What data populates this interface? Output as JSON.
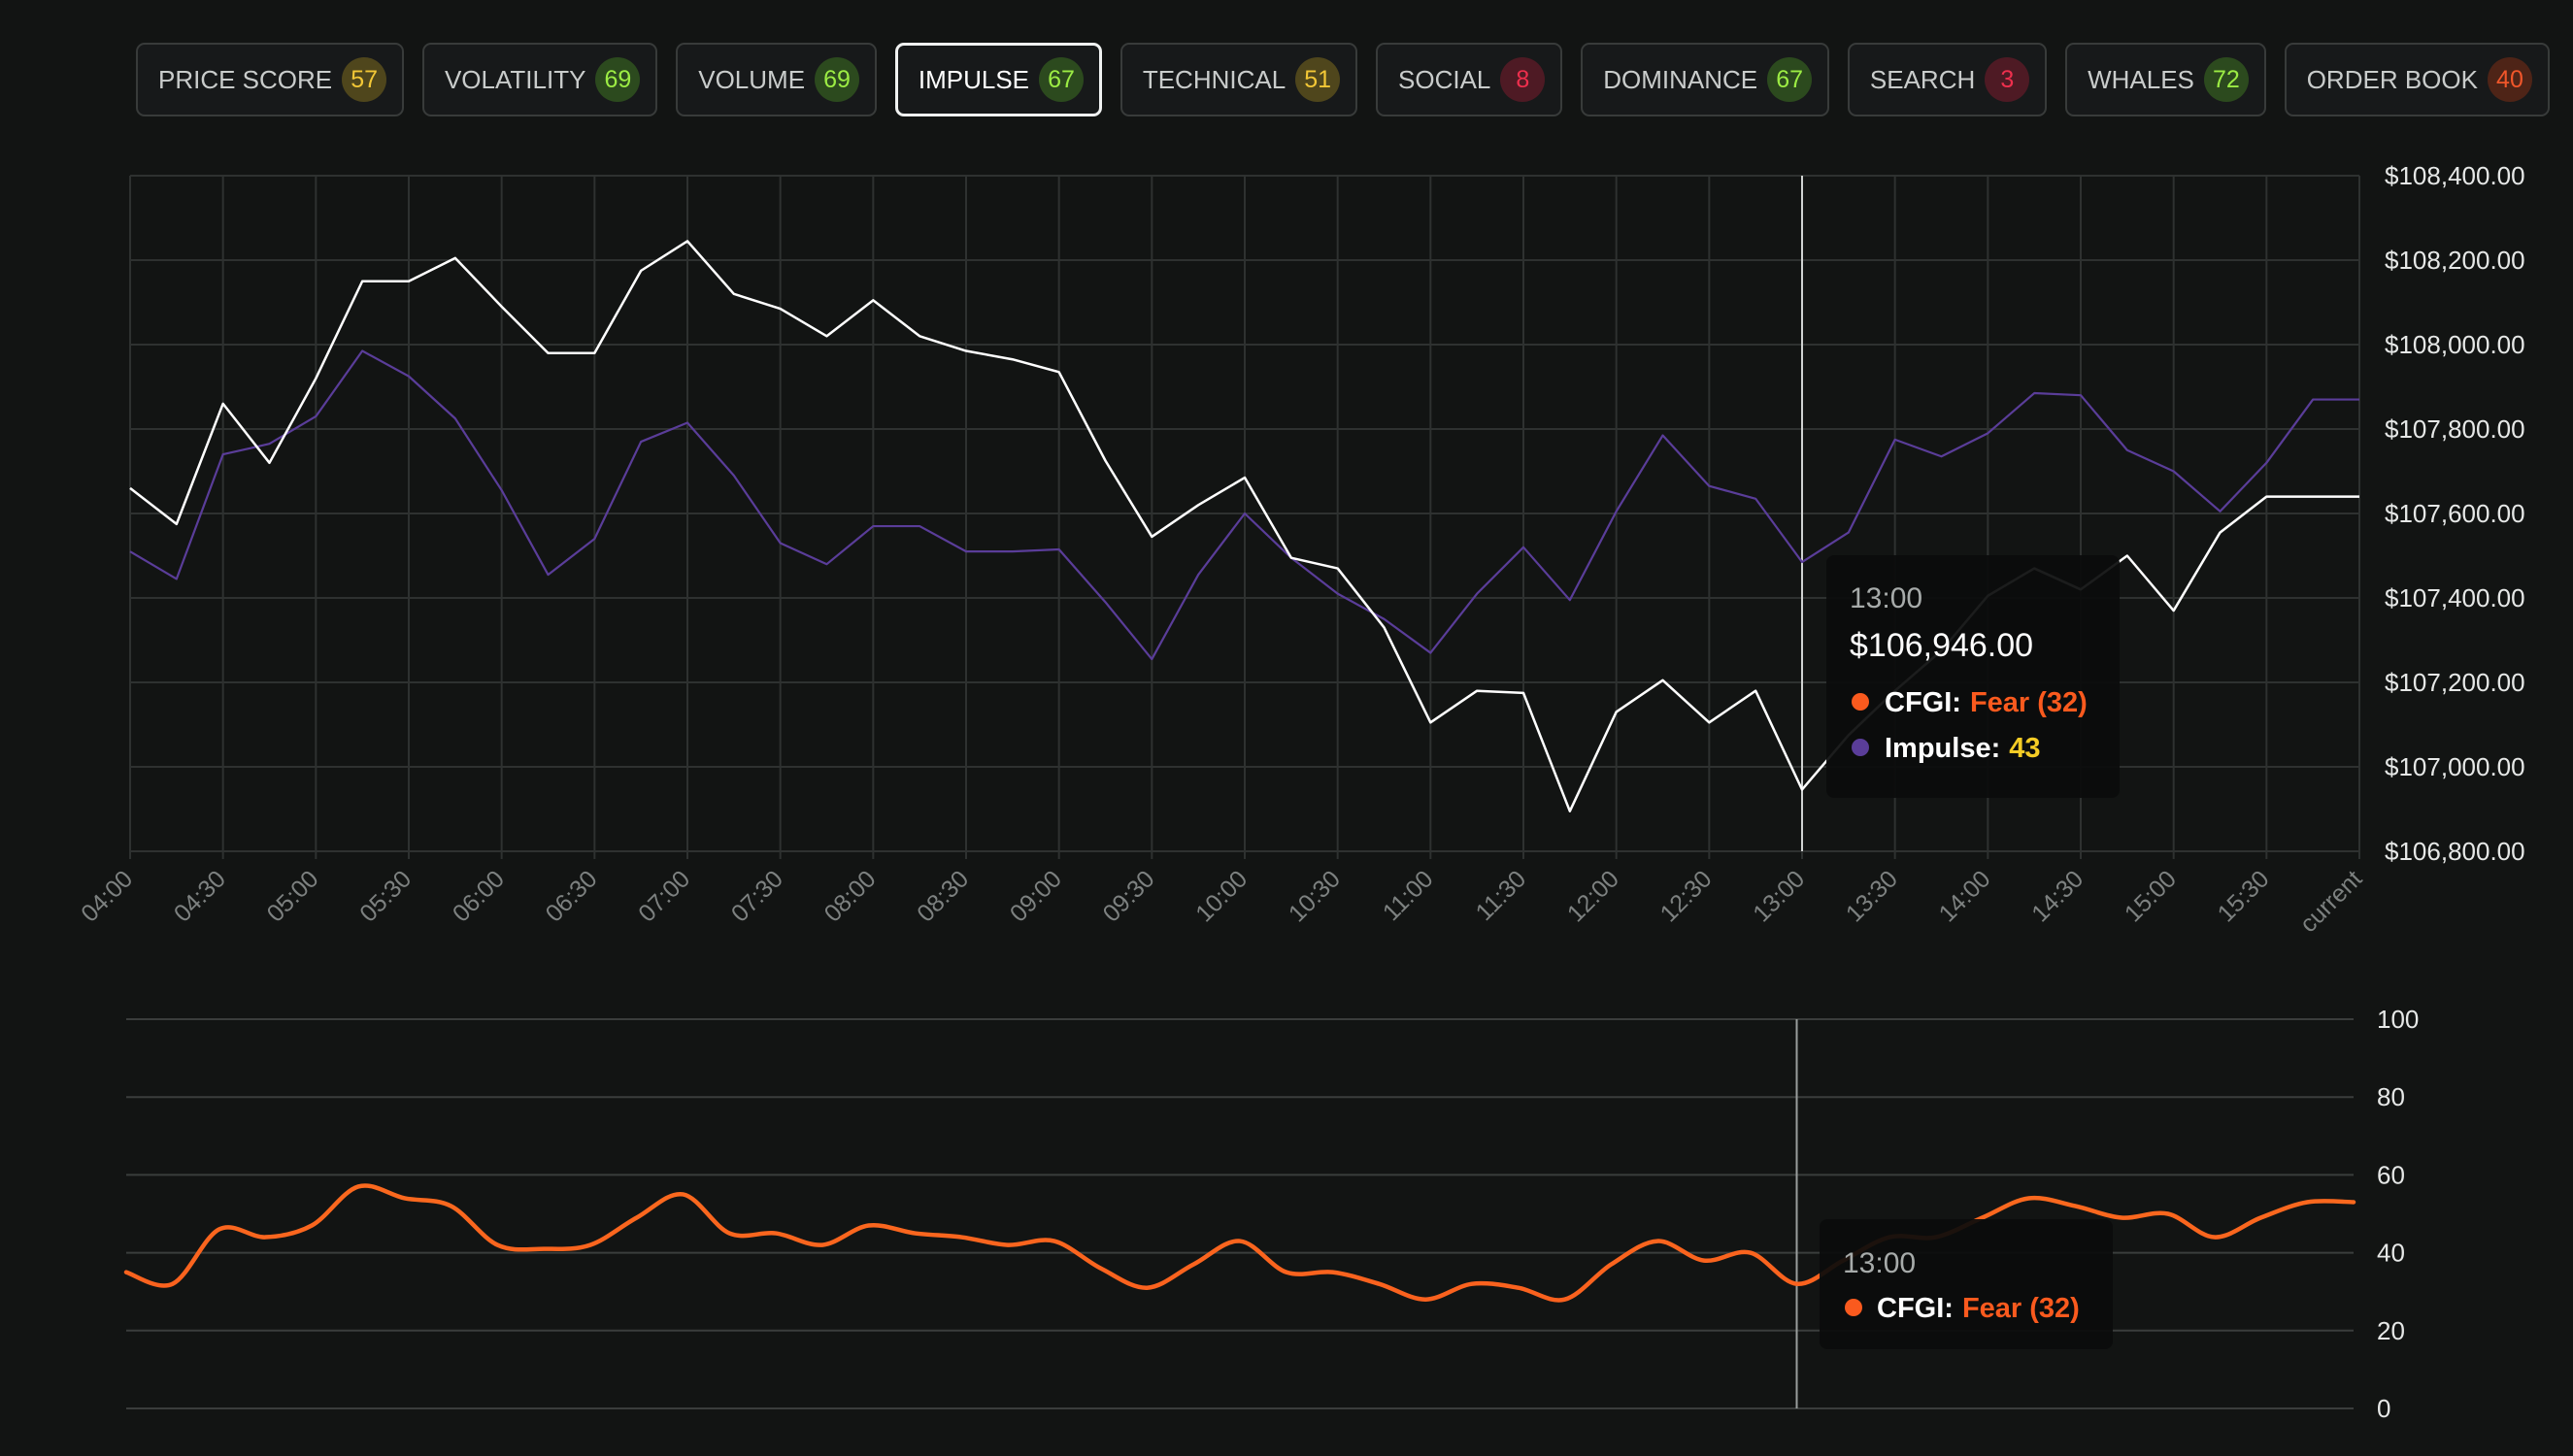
{
  "tabs": [
    {
      "label": "PRICE SCORE",
      "score": "57",
      "badge_bg": "#4f461c",
      "badge_fg": "#f2c736",
      "active": false
    },
    {
      "label": "VOLATILITY",
      "score": "69",
      "badge_bg": "#2c4a1e",
      "badge_fg": "#9cec44",
      "active": false
    },
    {
      "label": "VOLUME",
      "score": "69",
      "badge_bg": "#2c4a1e",
      "badge_fg": "#9cec44",
      "active": false
    },
    {
      "label": "IMPULSE",
      "score": "67",
      "badge_bg": "#2c4a1e",
      "badge_fg": "#9cec44",
      "active": true
    },
    {
      "label": "TECHNICAL",
      "score": "51",
      "badge_bg": "#4f461c",
      "badge_fg": "#f2c736",
      "active": false
    },
    {
      "label": "SOCIAL",
      "score": "8",
      "badge_bg": "#4e1a24",
      "badge_fg": "#ee2f4d",
      "active": false
    },
    {
      "label": "DOMINANCE",
      "score": "67",
      "badge_bg": "#2c4a1e",
      "badge_fg": "#9cec44",
      "active": false
    },
    {
      "label": "SEARCH",
      "score": "3",
      "badge_bg": "#4e1a24",
      "badge_fg": "#ee2f4d",
      "active": false
    },
    {
      "label": "WHALES",
      "score": "72",
      "badge_bg": "#2c4a1e",
      "badge_fg": "#9cec44",
      "active": false
    },
    {
      "label": "ORDER BOOK",
      "score": "40",
      "badge_bg": "#4e2417",
      "badge_fg": "#f0562a",
      "active": false
    }
  ],
  "chart_data": [
    {
      "type": "line",
      "x": [
        "04:00",
        "04:15",
        "04:30",
        "04:45",
        "05:00",
        "05:15",
        "05:30",
        "05:45",
        "06:00",
        "06:15",
        "06:30",
        "06:45",
        "07:00",
        "07:15",
        "07:30",
        "07:45",
        "08:00",
        "08:15",
        "08:30",
        "08:45",
        "09:00",
        "09:15",
        "09:30",
        "09:45",
        "10:00",
        "10:15",
        "10:30",
        "10:45",
        "11:00",
        "11:15",
        "11:30",
        "11:45",
        "12:00",
        "12:15",
        "12:30",
        "12:45",
        "13:00",
        "13:15",
        "13:30",
        "13:45",
        "14:00",
        "14:15",
        "14:30",
        "14:45",
        "15:00",
        "15:15",
        "15:30",
        "15:45",
        "current"
      ],
      "xticks": [
        "04:00",
        "04:30",
        "05:00",
        "05:30",
        "06:00",
        "06:30",
        "07:00",
        "07:30",
        "08:00",
        "08:30",
        "09:00",
        "09:30",
        "10:00",
        "10:30",
        "11:00",
        "11:30",
        "12:00",
        "12:30",
        "13:00",
        "13:30",
        "14:00",
        "14:30",
        "15:00",
        "15:30",
        "current"
      ],
      "yticks": [
        "$108,400.00",
        "$108,200.00",
        "$108,000.00",
        "$107,800.00",
        "$107,600.00",
        "$107,400.00",
        "$107,200.00",
        "$107,000.00",
        "$106,800.00"
      ],
      "ylim": [
        106800,
        108400
      ],
      "grid": true,
      "series": [
        {
          "values": [
            107660,
            107575,
            107860,
            107720,
            107920,
            108150,
            108150,
            108205,
            108090,
            107980,
            107980,
            108175,
            108245,
            108120,
            108085,
            108020,
            108105,
            108020,
            107985,
            107965,
            107935,
            107725,
            107545,
            107620,
            107685,
            107495,
            107470,
            107330,
            107105,
            107180,
            107175,
            106895,
            107130,
            107205,
            107105,
            107180,
            106946,
            107075,
            107180,
            107275,
            107405,
            107470,
            107420,
            107500,
            107370,
            107555,
            107640,
            107640,
            107640
          ],
          "color": "#ffffff"
        },
        {
          "values": [
            107510,
            107445,
            107740,
            107765,
            107830,
            107985,
            107925,
            107825,
            107655,
            107455,
            107540,
            107770,
            107815,
            107690,
            107530,
            107480,
            107570,
            107570,
            107510,
            107510,
            107515,
            107390,
            107255,
            107455,
            107600,
            107495,
            107410,
            107350,
            107270,
            107410,
            107520,
            107395,
            107605,
            107785,
            107665,
            107635,
            107485,
            107555,
            107775,
            107735,
            107790,
            107885,
            107880,
            107750,
            107700,
            107605,
            107720,
            107870,
            107870
          ],
          "color": "#5a3d99"
        }
      ],
      "tooltip": {
        "time": "13:00",
        "price": "$106,946.00",
        "cfgi_label": "CFGI:",
        "cfgi_value": "Fear (32)",
        "impulse_label": "Impulse:",
        "impulse_value": "43",
        "cfgi_color": "#fa5a1e",
        "impulse_color": "#5a3d99",
        "impulse_value_color": "#f5cc25"
      }
    },
    {
      "type": "line",
      "x": [
        "04:00",
        "04:15",
        "04:30",
        "04:45",
        "05:00",
        "05:15",
        "05:30",
        "05:45",
        "06:00",
        "06:15",
        "06:30",
        "06:45",
        "07:00",
        "07:15",
        "07:30",
        "07:45",
        "08:00",
        "08:15",
        "08:30",
        "08:45",
        "09:00",
        "09:15",
        "09:30",
        "09:45",
        "10:00",
        "10:15",
        "10:30",
        "10:45",
        "11:00",
        "11:15",
        "11:30",
        "11:45",
        "12:00",
        "12:15",
        "12:30",
        "12:45",
        "13:00",
        "13:15",
        "13:30",
        "13:45",
        "14:00",
        "14:15",
        "14:30",
        "14:45",
        "15:00",
        "15:15",
        "15:30",
        "15:45",
        "current"
      ],
      "yticks": [
        "100",
        "80",
        "60",
        "40",
        "20",
        "0"
      ],
      "ylim": [
        0,
        100
      ],
      "grid": true,
      "series": [
        {
          "values": [
            35,
            32,
            46,
            44,
            47,
            57,
            54,
            52,
            42,
            41,
            42,
            49,
            55,
            45,
            45,
            42,
            47,
            45,
            44,
            42,
            43,
            36,
            31,
            37,
            43,
            35,
            35,
            32,
            28,
            32,
            31,
            28,
            37,
            43,
            38,
            40,
            32,
            38,
            44,
            44,
            49,
            54,
            52,
            49,
            50,
            44,
            49,
            53,
            53
          ],
          "color_low": "#fa5a1e",
          "color_high": "#f5cc25"
        }
      ],
      "tooltip": {
        "time": "13:00",
        "cfgi_label": "CFGI:",
        "cfgi_value": "Fear (32)",
        "cfgi_color": "#fa5a1e"
      }
    }
  ]
}
